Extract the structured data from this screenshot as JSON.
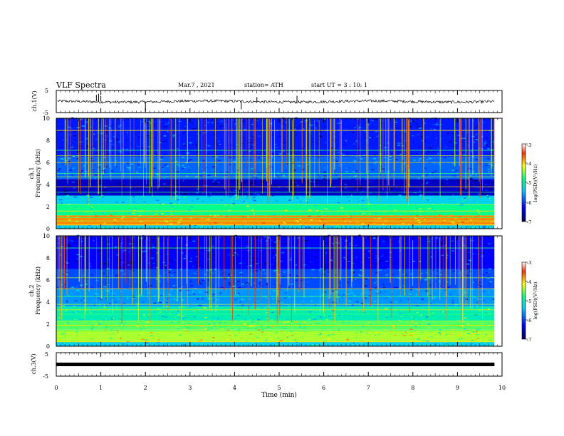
{
  "header": {
    "title": "VLF Spectra",
    "date": "Mar.7 , 2021",
    "station": "station= ATH",
    "start": "start UT = 3 : 10: 1"
  },
  "chart_data": [
    {
      "type": "line",
      "panel": "waveform-ch1",
      "ylabel": "ch.1(V)",
      "ylim": [
        -5,
        5
      ],
      "y_ticks": [
        "5",
        "-5"
      ],
      "x_range": [
        0,
        10
      ],
      "x_data_end": 9.83,
      "baseline": 0.0,
      "noise_amplitude": 0.6,
      "spikes": [
        {
          "x": 0.9,
          "y": 3.0
        },
        {
          "x": 0.95,
          "y": 3.5
        },
        {
          "x": 1.0,
          "y": 2.6
        },
        {
          "x": 2.0,
          "y": -4.5
        },
        {
          "x": 4.15,
          "y": -3.5
        },
        {
          "x": 4.5,
          "y": 2.0
        },
        {
          "x": 5.4,
          "y": 2.6
        }
      ],
      "color": "#000000"
    },
    {
      "type": "heatmap",
      "panel": "spectrogram-ch1",
      "ylabel": "ch.1",
      "ylabel2": "Frequency (kHz)",
      "ylim": [
        0,
        10
      ],
      "y_ticks": [
        "0",
        "2",
        "4",
        "6",
        "8",
        "10"
      ],
      "x_range": [
        0,
        10
      ],
      "x_data_end": 9.83,
      "colorbar": {
        "label": "log(PSD)(V²/Hz)",
        "range": [
          -7,
          -3
        ],
        "ticks": [
          "-3",
          "-4",
          "-5",
          "-6",
          "-7"
        ],
        "colors": [
          "#000060",
          "#0000ff",
          "#00c8ff",
          "#00ff80",
          "#ffff00",
          "#ff4000",
          "#ffffff"
        ]
      },
      "bands": [
        {
          "from": 0,
          "to": 0.3,
          "level": -5.5
        },
        {
          "from": 0.3,
          "to": 1.2,
          "level": -4.0
        },
        {
          "from": 1.2,
          "to": 2.2,
          "level": -5.0
        },
        {
          "from": 2.2,
          "to": 3.0,
          "level": -5.5
        },
        {
          "from": 3.0,
          "to": 4.5,
          "level": -6.6
        },
        {
          "from": 4.5,
          "to": 6.5,
          "level": -6.0
        },
        {
          "from": 6.5,
          "to": 10,
          "level": -6.3
        }
      ],
      "lines_khz": [
        0.35,
        0.7,
        1.0,
        1.6,
        2.2,
        3.3,
        3.8,
        4.7,
        5.0,
        6.0,
        6.6,
        7.1,
        8.9
      ]
    },
    {
      "type": "heatmap",
      "panel": "spectrogram-ch2",
      "ylabel": "ch.2",
      "ylabel2": "Frequency (kHz)",
      "ylim": [
        0,
        10
      ],
      "y_ticks": [
        "0",
        "2",
        "4",
        "6",
        "8",
        "10"
      ],
      "x_range": [
        0,
        10
      ],
      "x_data_end": 9.83,
      "colorbar": {
        "label": "log(PSD)(V²/Hz)",
        "range": [
          -7,
          -3
        ],
        "ticks": [
          "-3",
          "-4",
          "-5",
          "-6",
          "-7"
        ],
        "colors": [
          "#000060",
          "#0000ff",
          "#00c8ff",
          "#00ff80",
          "#ffff00",
          "#ff4000",
          "#ffffff"
        ]
      },
      "bands": [
        {
          "from": 0,
          "to": 0.4,
          "level": -5.5
        },
        {
          "from": 0.4,
          "to": 1.5,
          "level": -4.6
        },
        {
          "from": 1.5,
          "to": 2.3,
          "level": -4.8
        },
        {
          "from": 2.3,
          "to": 3.6,
          "level": -5.2
        },
        {
          "from": 3.6,
          "to": 5.2,
          "level": -5.8
        },
        {
          "from": 5.2,
          "to": 7.0,
          "level": -6.1
        },
        {
          "from": 7.0,
          "to": 10,
          "level": -6.4
        }
      ],
      "lines_khz": [
        0.4,
        0.9,
        1.4,
        1.9,
        2.3,
        2.9,
        3.3,
        3.8,
        4.5,
        5.2,
        6.2,
        8.9
      ]
    },
    {
      "type": "line",
      "panel": "waveform-ch3",
      "ylabel": "ch.3(V)",
      "ylim": [
        -5,
        5
      ],
      "y_ticks": [
        "5",
        "-5"
      ],
      "x_range": [
        0,
        10
      ],
      "x_data_end": 9.83,
      "baseline": 0.0,
      "noise_amplitude": 0.0,
      "line_thickness_note": "flat thick trace",
      "color": "#000000"
    }
  ],
  "xaxis": {
    "label": "Time (min)",
    "ticks": [
      "0",
      "1",
      "2",
      "3",
      "4",
      "5",
      "6",
      "7",
      "8",
      "9",
      "10"
    ]
  }
}
